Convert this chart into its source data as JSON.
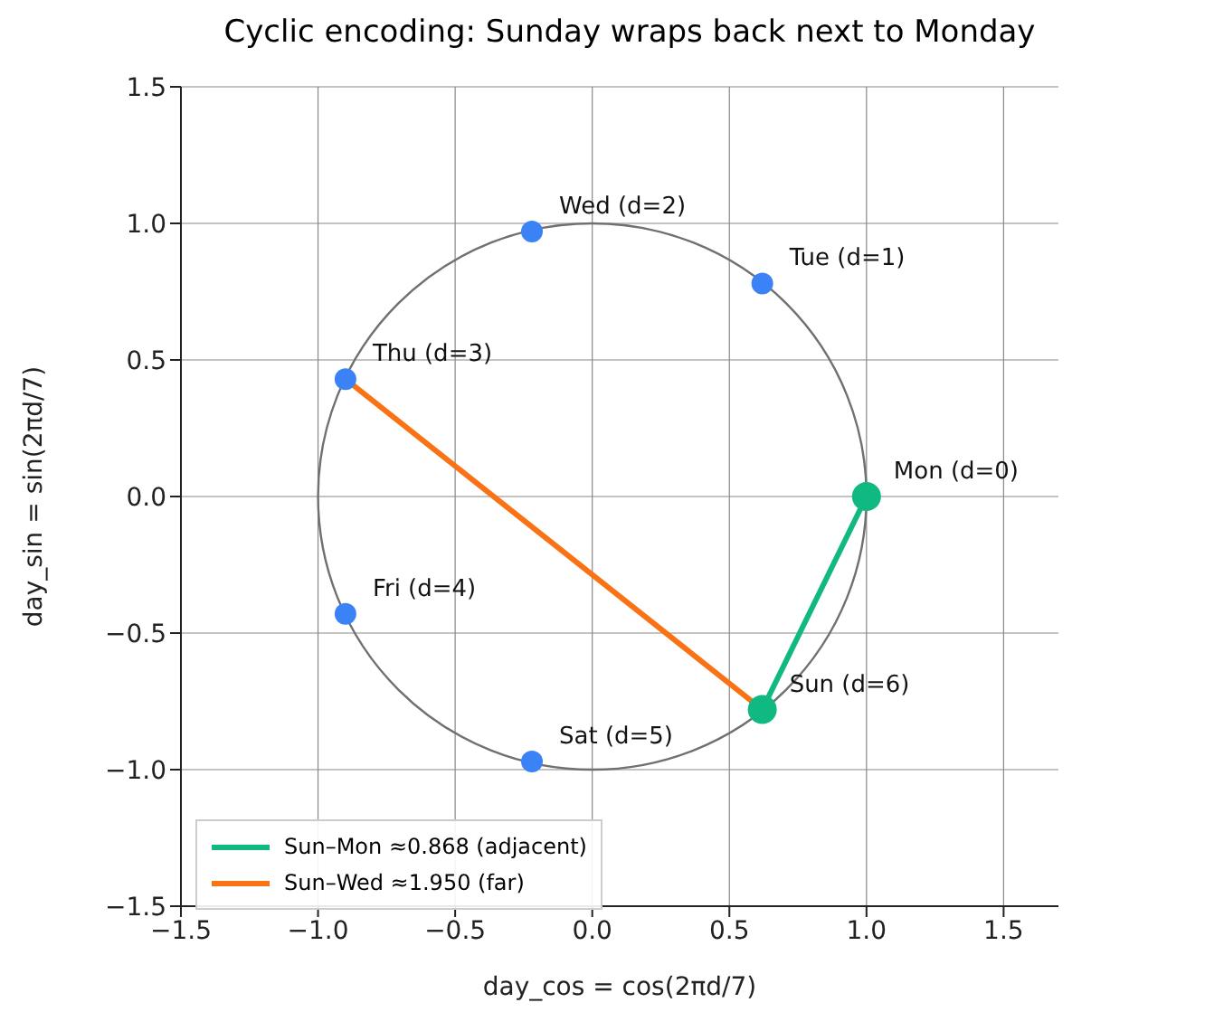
{
  "chart_data": {
    "type": "scatter",
    "title": "Cyclic encoding: Sunday wraps back next to Monday",
    "xlabel": "day_cos = cos(2πd/7)",
    "ylabel": "day_sin = sin(2πd/7)",
    "xlim": [
      -1.5,
      1.7
    ],
    "ylim": [
      -1.5,
      1.5
    ],
    "xticks": [
      {
        "value": -1.5,
        "label": "−1.5"
      },
      {
        "value": -1,
        "label": "−1.0"
      },
      {
        "value": -0.5,
        "label": "−0.5"
      },
      {
        "value": 0,
        "label": "0.0"
      },
      {
        "value": 0.5,
        "label": "0.5"
      },
      {
        "value": 1,
        "label": "1.0"
      },
      {
        "value": 1.5,
        "label": "1.5"
      }
    ],
    "yticks": [
      {
        "value": -1.5,
        "label": "−1.5"
      },
      {
        "value": -1,
        "label": "−1.0"
      },
      {
        "value": -0.5,
        "label": "−0.5"
      },
      {
        "value": 0,
        "label": "0.0"
      },
      {
        "value": 0.5,
        "label": "0.5"
      },
      {
        "value": 1,
        "label": "1.0"
      },
      {
        "value": 1.5,
        "label": "1.5"
      }
    ],
    "grid": true,
    "legend": "bottom left",
    "series": [
      {
        "type": "line",
        "name": "Sun–Wed  ≈1.950 (far)",
        "color": "#f97316",
        "x": [
          0.62,
          -0.9
        ],
        "values": [
          -0.78,
          0.43
        ]
      },
      {
        "type": "line",
        "name": "Sun–Mon  ≈0.868 (adjacent)",
        "color": "#10b981",
        "marker": "circle",
        "x": [
          0.62,
          1
        ],
        "values": [
          -0.78,
          0
        ]
      },
      {
        "color": "#3b82f6",
        "marker": "circle",
        "x": [
          0.62,
          -0.22,
          -0.9,
          -0.9,
          -0.22
        ],
        "values": [
          0.78,
          0.97,
          0.43,
          -0.43,
          -0.97
        ]
      }
    ],
    "annotations": [
      {
        "text": "Mon (d=0)",
        "x": 1,
        "y": 0
      },
      {
        "text": "Tue (d=1)",
        "x": 0.62,
        "y": 0.78
      },
      {
        "text": "Wed (d=2)",
        "x": -0.22,
        "y": 0.97
      },
      {
        "text": "Thu (d=3)",
        "x": -0.9,
        "y": 0.43
      },
      {
        "text": "Fri (d=4)",
        "x": -0.9,
        "y": -0.43
      },
      {
        "text": "Sat (d=5)",
        "x": -0.22,
        "y": -0.97
      },
      {
        "text": "Sun (d=6)",
        "x": 0.62,
        "y": -0.78
      }
    ]
  }
}
